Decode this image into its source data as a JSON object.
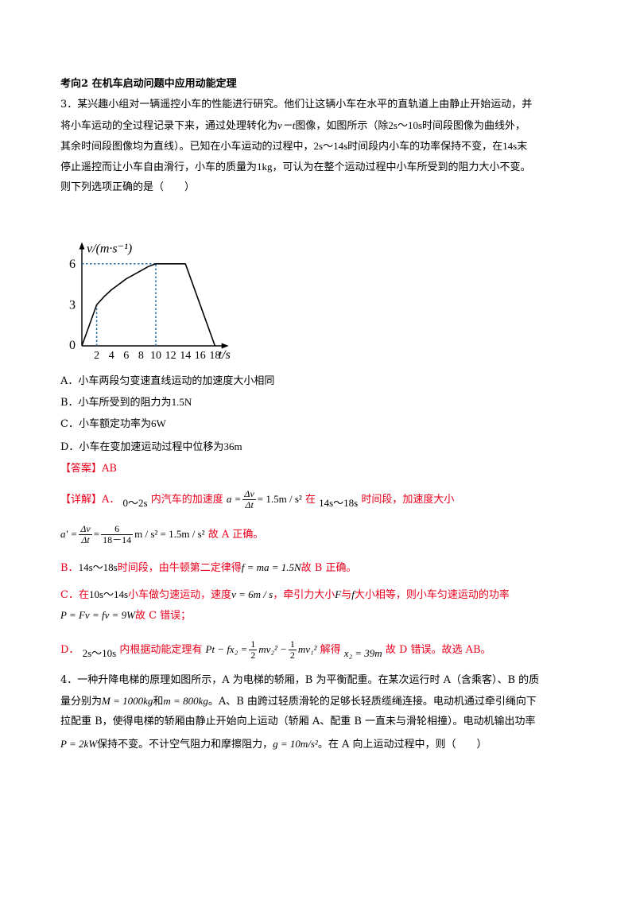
{
  "section_heading": "考向2  在机车启动问题中应用动能定理",
  "q3": {
    "line1": "3．某兴趣小组对一辆遥控小车的性能进行研究。他们让这辆小车在水平的直轨道上由静止开始运动，并",
    "line2a": "将小车运动的全过程记录下来，通过处理转化为",
    "line2_vt": "v－t",
    "line2b": "图像，如图所示（除",
    "line2_range": "2s～10s",
    "line2c": "时间段图像为曲线外，",
    "line3a": "其余时间段图像均为直线）。已知在小车运动的过程中，",
    "line3_range": "2s～14s",
    "line3b": "时间段内小车的功率保持不变，在",
    "line3_t": "14s",
    "line3c": "末",
    "line4a": "停止遥控而让小车自由滑行，小车的质量为",
    "line4_m": "1kg",
    "line4b": "，可认为在整个运动过程中小车所受到的阻力大小不变。",
    "line5": "则下列选项正确的是（　　）",
    "options": [
      {
        "text": "A．小车两段匀变速直线运动的加速度大小相同",
        "value": ""
      },
      {
        "text": "B．小车所受到的阻力为",
        "value": "1.5N"
      },
      {
        "text": "C．小车额定功率为",
        "value": "6W"
      },
      {
        "text": "D．小车在变加速运动过程中位移为",
        "value": "36m"
      }
    ],
    "answer": "【答案】AB"
  },
  "detail": {
    "label": "【详解】A．",
    "a_range": "0～2s",
    "a_text": "内汽车的加速度",
    "a_lhs": "a =",
    "frac1_num": "Δv",
    "frac1_den": "Δt",
    "a_rhs": "= 1.5m / s²",
    "a_text2": "在",
    "a_range2": "14s～18s",
    "a_text3": "时间段，加速度大小",
    "a2_lhs": "a′ =",
    "frac2_num": "Δv",
    "frac2_den": "Δt",
    "a2_eq": "=",
    "frac3_num": "6",
    "frac3_den": "18－14",
    "a2_rhs": "m / s² = 1.5m / s²",
    "a2_text": "故 A 正确。",
    "b_label": "B．",
    "b_range": "14s～18s",
    "b_text": "时间段，由牛顿第二定律得",
    "b_eq": "f = ma = 1.5N",
    "b_text2": "故 B 正确。",
    "c_label": "C．在",
    "c_range": "10s～14s",
    "c_text": "小车做匀速运动，速度",
    "c_v": "v = 6m / s",
    "c_text2": "，牵引力大小",
    "c_F": "F",
    "c_text3": "与",
    "c_f": "f",
    "c_text4": "大小相等，则小车匀速运动的功率",
    "c_eq": "P = Fv = fv = 9W",
    "c_text5": "故 C 错误；",
    "d_label": "D．",
    "d_range": "2s～10s",
    "d_text": "内根据动能定理有",
    "d_eq1": "Pt − fx₂ =",
    "d_half1_num": "1",
    "d_half1_den": "2",
    "d_eq2": "mv₂² −",
    "d_half2_num": "1",
    "d_half2_den": "2",
    "d_eq3": "mv₁²",
    "d_text2": "解得",
    "d_x": "x₂ = 39m",
    "d_text3": "故 D 错误。故选 AB。"
  },
  "q4": {
    "line1": "4．一种升降电梯的原理如图所示，A 为电梯的轿厢，B 为平衡配重。在某次运行时 A（含乘客）、B 的质",
    "line2a": "量分别为",
    "line2_M": "M = 1000kg",
    "line2b": "和",
    "line2_m": "m = 800kg",
    "line2c": "。A、B 由跨过轻质滑轮的足够长轻质缆绳连接。电动机通过牵引绳向下",
    "line3": "拉配重 B，使得电梯的轿厢由静止开始向上运动（轿厢 A、配重 B 一直未与滑轮相撞）。电动机输出功率",
    "line4_P": "P = 2kW",
    "line4a": "保持不变。不计空气阻力和摩擦阻力，",
    "line4_g": "g = 10m/s²",
    "line4b": "。在 A 向上运动过程中，则（　　）"
  },
  "chart_data": {
    "type": "line",
    "ylabel": "v/(m·s⁻¹)",
    "xlabel": "t/s",
    "origin_label": "0",
    "xticks": [
      "2",
      "4",
      "6",
      "8",
      "10",
      "12",
      "14",
      "16",
      "18"
    ],
    "yticks": [
      "3",
      "6"
    ],
    "xlim": [
      0,
      19
    ],
    "ylim": [
      0,
      7
    ],
    "series": [
      {
        "x": [
          0,
          2,
          3,
          4,
          5,
          6,
          7,
          8,
          9,
          10,
          14,
          18
        ],
        "y": [
          0,
          3,
          3.6,
          4.1,
          4.5,
          4.9,
          5.2,
          5.5,
          5.8,
          6,
          6,
          0
        ]
      }
    ],
    "guides": [
      {
        "from": [
          0,
          6
        ],
        "to": [
          14,
          6
        ]
      },
      {
        "from": [
          2,
          0
        ],
        "to": [
          2,
          3
        ]
      },
      {
        "from": [
          10,
          0
        ],
        "to": [
          10,
          6
        ]
      }
    ],
    "guide_color": "#1f6fa6",
    "curve_color": "#000000"
  }
}
